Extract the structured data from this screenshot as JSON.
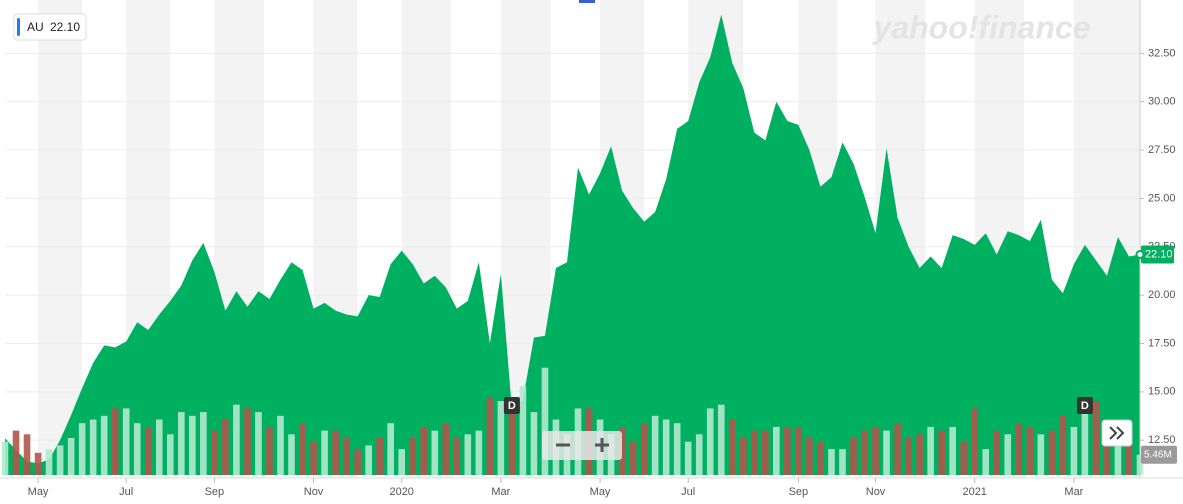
{
  "chart_data": {
    "type": "area",
    "symbol": "AU",
    "watermark": "yahoo!finance",
    "last_label": {
      "value": 22.1,
      "label": "22.10"
    },
    "volume_label": {
      "value": 5.46,
      "label": "5.46M"
    },
    "dividends": [
      {
        "label": "D",
        "category": 46
      },
      {
        "label": "D",
        "category": 98
      }
    ],
    "categories": [
      null,
      null,
      null,
      "May",
      null,
      null,
      null,
      null,
      null,
      null,
      null,
      "Jul",
      null,
      null,
      null,
      null,
      null,
      null,
      null,
      "Sep",
      null,
      null,
      null,
      null,
      null,
      null,
      null,
      null,
      "Nov",
      null,
      null,
      null,
      null,
      null,
      null,
      null,
      "2020",
      null,
      null,
      null,
      null,
      null,
      null,
      null,
      null,
      "Mar",
      null,
      null,
      null,
      null,
      null,
      null,
      null,
      null,
      "May",
      null,
      null,
      null,
      null,
      null,
      null,
      null,
      "Jul",
      null,
      null,
      null,
      null,
      null,
      null,
      null,
      null,
      null,
      "Sep",
      null,
      null,
      null,
      null,
      null,
      null,
      "Nov",
      null,
      null,
      null,
      null,
      null,
      null,
      null,
      null,
      "2021",
      null,
      null,
      null,
      null,
      null,
      null,
      null,
      null,
      "Mar",
      null,
      null,
      null,
      null,
      null,
      null
    ],
    "series": [
      {
        "name": "AU",
        "color": "#00b061",
        "values": [
          12.6,
          12.0,
          11.4,
          11.3,
          11.5,
          12.5,
          13.8,
          15.2,
          16.5,
          17.4,
          17.3,
          17.6,
          18.6,
          18.2,
          19.0,
          19.7,
          20.5,
          21.8,
          22.7,
          21.2,
          19.2,
          20.2,
          19.4,
          20.2,
          19.8,
          20.8,
          21.7,
          21.3,
          19.3,
          19.6,
          19.2,
          19.0,
          18.9,
          20.0,
          19.9,
          21.6,
          22.3,
          21.6,
          20.6,
          21.0,
          20.4,
          19.3,
          19.7,
          21.7,
          17.5,
          21.1,
          14.1,
          14.6,
          17.8,
          17.9,
          21.4,
          21.7,
          26.6,
          25.2,
          26.3,
          27.7,
          25.4,
          24.5,
          23.8,
          24.3,
          26.0,
          28.6,
          29.0,
          31.0,
          32.3,
          34.5,
          32.0,
          30.7,
          28.4,
          28.0,
          30.0,
          29.0,
          28.8,
          27.5,
          25.6,
          26.1,
          27.9,
          26.8,
          25.1,
          23.2,
          27.6,
          24.0,
          22.5,
          21.4,
          22.0,
          21.4,
          23.1,
          22.9,
          22.6,
          23.2,
          22.1,
          23.3,
          23.1,
          22.8,
          23.9,
          20.8,
          20.1,
          21.6,
          22.6,
          21.8,
          21.0,
          23.0,
          22.0,
          22.1
        ]
      },
      {
        "name": "Volume",
        "axis": "y2",
        "up_color": "#b3ead0",
        "down_color": "#b0564a",
        "values": [
          9,
          12,
          11,
          6,
          7,
          8,
          10,
          14,
          15,
          16,
          18,
          18,
          14,
          13,
          15,
          11,
          17,
          16,
          17,
          12,
          15,
          19,
          18,
          17,
          13,
          16,
          11,
          14,
          9,
          12,
          12,
          10,
          7,
          8,
          10,
          14,
          7,
          10,
          13,
          12,
          14,
          10,
          11,
          12,
          21,
          20,
          19,
          24,
          17,
          29,
          15,
          11,
          18,
          18,
          15,
          11,
          13,
          9,
          14,
          16,
          15,
          14,
          9,
          11,
          18,
          19,
          15,
          10,
          12,
          12,
          13,
          13,
          13,
          10,
          9,
          7,
          7,
          10,
          12,
          13,
          12,
          14,
          10,
          11,
          13,
          12,
          13,
          9,
          18,
          7,
          12,
          11,
          14,
          13,
          11,
          12,
          16,
          13,
          21,
          20,
          11,
          13,
          12,
          5.46
        ]
      }
    ],
    "ylim": [
      10.7,
      35.0
    ],
    "yticks": [
      {
        "value": 12.5,
        "label": "12.50"
      },
      {
        "value": 15,
        "label": "15.00"
      },
      {
        "value": 17.5,
        "label": "17.50"
      },
      {
        "value": 20,
        "label": "20.00"
      },
      {
        "value": 22.5,
        "label": "22.50"
      },
      {
        "value": 25,
        "label": "25.00"
      },
      {
        "value": 27.5,
        "label": "27.50"
      },
      {
        "value": 30,
        "label": "30.00"
      },
      {
        "value": 32.5,
        "label": "32.50"
      }
    ],
    "y2lim": [
      0,
      40
    ],
    "grid": true
  }
}
